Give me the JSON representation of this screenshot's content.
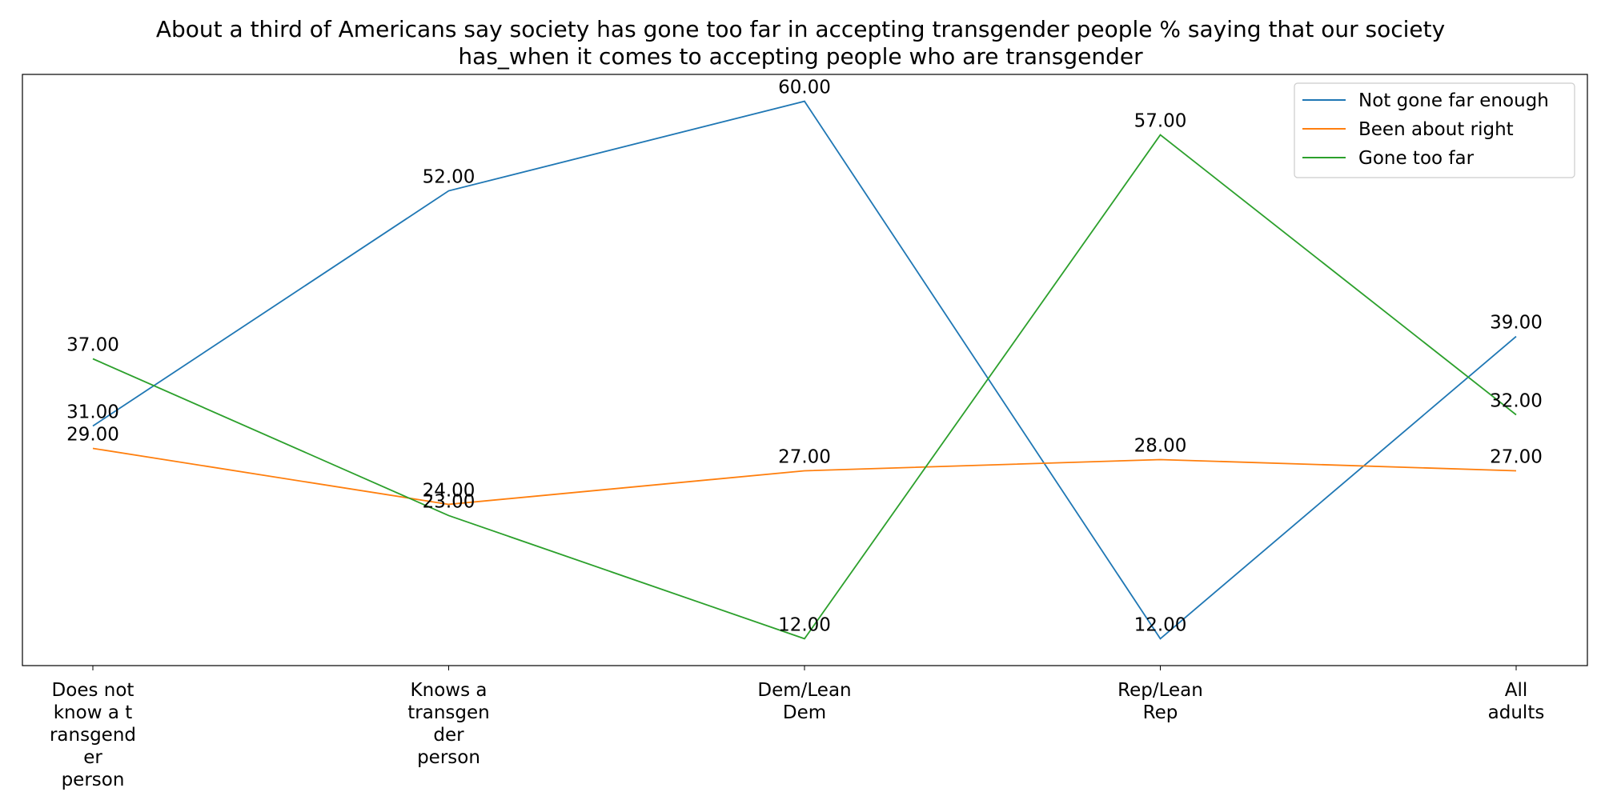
{
  "chart_data": {
    "type": "line",
    "title_lines": [
      "About a third of Americans say society has gone too far in accepting transgender people % saying that our society",
      "has_when it comes to accepting people who are transgender"
    ],
    "categories": [
      [
        "Does not",
        "know a t",
        "ransgend",
        "er",
        "person"
      ],
      [
        "Knows a",
        "transgen",
        "der",
        "person"
      ],
      [
        "Dem/Lean",
        "Dem"
      ],
      [
        "Rep/Lean",
        "Rep"
      ],
      [
        "All",
        "adults"
      ]
    ],
    "series": [
      {
        "name": "Not gone far enough",
        "color": "#1f77b4",
        "values": [
          31,
          52,
          60,
          12,
          39
        ]
      },
      {
        "name": "Been about right",
        "color": "#ff7f0e",
        "values": [
          29,
          24,
          27,
          28,
          27
        ]
      },
      {
        "name": "Gone too far",
        "color": "#2ca02c",
        "values": [
          37,
          23,
          12,
          57,
          32
        ]
      }
    ],
    "ylim": [
      9.6,
      62.4
    ],
    "legend_position": "top-right",
    "grid": false,
    "value_format_decimals": 2
  }
}
